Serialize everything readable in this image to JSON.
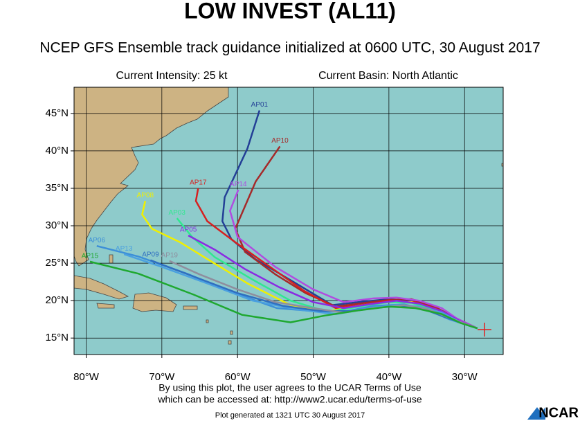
{
  "chart_data": {
    "type": "map",
    "title": "LOW INVEST (AL11)",
    "subtitle": "NCEP GFS Ensemble track guidance initialized at 0600 UTC, 30 August 2017",
    "intensity": "Current Intensity: 25 kt",
    "basin": "Current Basin: North Atlantic",
    "notice": [
      "By using this plot, the user agrees to the UCAR Terms of Use",
      "which can be accessed at: http://www2.ucar.edu/terms-of-use"
    ],
    "generated": "Plot generated at 1321 UTC  30 August 2017",
    "logo": "NCAR",
    "xlim": [
      -81.6,
      -24.9
    ],
    "ylim": [
      12.8,
      48.5
    ],
    "grid": true,
    "xticks": [
      {
        "value": -80,
        "label": "80°W"
      },
      {
        "value": -70,
        "label": "70°W"
      },
      {
        "value": -60,
        "label": "60°W"
      },
      {
        "value": -50,
        "label": "50°W"
      },
      {
        "value": -40,
        "label": "40°W"
      },
      {
        "value": -30,
        "label": "30°W"
      }
    ],
    "yticks": [
      {
        "value": 15,
        "label": "15°N"
      },
      {
        "value": 20,
        "label": "20°N"
      },
      {
        "value": 25,
        "label": "25°N"
      },
      {
        "value": 30,
        "label": "30°N"
      },
      {
        "value": 35,
        "label": "35°N"
      },
      {
        "value": 40,
        "label": "40°N"
      },
      {
        "value": 45,
        "label": "45°N"
      }
    ],
    "series": [
      {
        "name": "AP01",
        "color": "#233f96",
        "x": [
          -57.1,
          -58.7,
          -61.7,
          -62,
          -60.8,
          -57.6,
          -52.1,
          -47.5,
          -44,
          -40,
          -37,
          -34,
          -31,
          -28.3
        ],
        "values": [
          45.4,
          40.3,
          33.8,
          30.6,
          28.2,
          25.5,
          22.2,
          19.4,
          19.8,
          20.2,
          20,
          19,
          17.5,
          16.3
        ]
      },
      {
        "name": "AP10",
        "color": "#a52a2a",
        "x": [
          -54.4,
          -57.6,
          -60.3,
          -59,
          -55,
          -51,
          -47,
          -44,
          -40,
          -37,
          -34,
          -31,
          -28.3
        ],
        "values": [
          40.6,
          35.9,
          29.6,
          26.5,
          23.5,
          21,
          19.2,
          19.6,
          20.1,
          20.2,
          19.2,
          17.6,
          16.3
        ]
      },
      {
        "name": "AP17",
        "color": "#d62020",
        "x": [
          -65.2,
          -65.5,
          -64,
          -60.3,
          -55.7,
          -51.2,
          -47,
          -43,
          -40,
          -36.5,
          -33.5,
          -31,
          -28.3
        ],
        "values": [
          35,
          33.3,
          30.6,
          27.8,
          24.5,
          21.3,
          19,
          19.5,
          20,
          19.8,
          18.8,
          17.4,
          16.3
        ]
      },
      {
        "name": "AP14",
        "color": "#b04ce0",
        "x": [
          -59.9,
          -61,
          -60,
          -55,
          -50,
          -46,
          -42,
          -39,
          -36,
          -33,
          -31,
          -28.3
        ],
        "values": [
          34.8,
          32,
          28.5,
          24.5,
          21.5,
          19.8,
          20.3,
          20.4,
          20,
          19,
          17.6,
          16.3
        ]
      },
      {
        "name": "AP08",
        "color": "#f0f000",
        "x": [
          -72.2,
          -72.6,
          -71.3,
          -67.6,
          -63.1,
          -58.5,
          -53,
          -48,
          -44,
          -40,
          -37,
          -34,
          -31,
          -28.3
        ],
        "values": [
          33.3,
          31.5,
          29.6,
          27.8,
          25,
          22.2,
          19.4,
          18.6,
          19.3,
          19.8,
          19.8,
          18.8,
          17.3,
          16.3
        ]
      },
      {
        "name": "AP03",
        "color": "#30e890",
        "x": [
          -68,
          -66,
          -63,
          -58,
          -53,
          -48,
          -44,
          -40,
          -37,
          -34,
          -31,
          -28.3
        ],
        "values": [
          31,
          28.5,
          25.8,
          22.8,
          20,
          18.5,
          19.2,
          19.8,
          19.7,
          18.7,
          17.3,
          16.3
        ]
      },
      {
        "name": "AP05",
        "color": "#8a2be2",
        "x": [
          -66.5,
          -63,
          -59,
          -54.5,
          -50,
          -46,
          -42,
          -39,
          -36,
          -33,
          -30.5,
          -28.3
        ],
        "values": [
          28.7,
          26.8,
          24.2,
          21.8,
          19.8,
          19,
          19.6,
          20,
          19.6,
          18.6,
          17.2,
          16.3
        ]
      },
      {
        "name": "AP06",
        "color": "#3c8fd8",
        "x": [
          -78.6,
          -73.1,
          -66.7,
          -61.2,
          -54.8,
          -50,
          -46,
          -42,
          -38,
          -35,
          -32,
          -28.3
        ],
        "values": [
          27.3,
          25.9,
          23.6,
          21.3,
          19,
          18.6,
          18.5,
          19.3,
          19.5,
          18.8,
          17.5,
          16.3
        ]
      },
      {
        "name": "AP13",
        "color": "#4aa0e0",
        "x": [
          -75,
          -70,
          -64,
          -58,
          -52,
          -47,
          -43,
          -39,
          -36,
          -33,
          -30.5,
          -28.3
        ],
        "values": [
          26.2,
          24.5,
          22.3,
          20,
          18.8,
          18.2,
          18.9,
          19.4,
          19.2,
          18.4,
          17.1,
          16.3
        ]
      },
      {
        "name": "AP09",
        "color": "#2f6fc0",
        "x": [
          -71.5,
          -66,
          -60,
          -54,
          -49,
          -45,
          -41,
          -38,
          -35,
          -32,
          -28.3
        ],
        "values": [
          25.4,
          23.3,
          21,
          19.3,
          18.6,
          18.6,
          19.1,
          19.3,
          18.7,
          17.6,
          16.3
        ]
      },
      {
        "name": "AP19",
        "color": "#8e8e9e",
        "x": [
          -69,
          -65,
          -60,
          -55,
          -50,
          -46,
          -42,
          -38,
          -35,
          -32,
          -28.3
        ],
        "values": [
          25.3,
          23.5,
          21.5,
          19.8,
          19,
          18.4,
          19,
          19.4,
          18.9,
          17.7,
          16.3
        ]
      },
      {
        "name": "AP15",
        "color": "#1fa830",
        "x": [
          -79.5,
          -73.1,
          -65.8,
          -59.4,
          -53,
          -48.5,
          -44,
          -40,
          -36.5,
          -33,
          -30.5,
          -28.3
        ],
        "values": [
          25.2,
          23.6,
          20.8,
          18.1,
          17.1,
          18,
          18.7,
          19.2,
          19,
          18.2,
          17,
          16.3
        ]
      }
    ]
  }
}
